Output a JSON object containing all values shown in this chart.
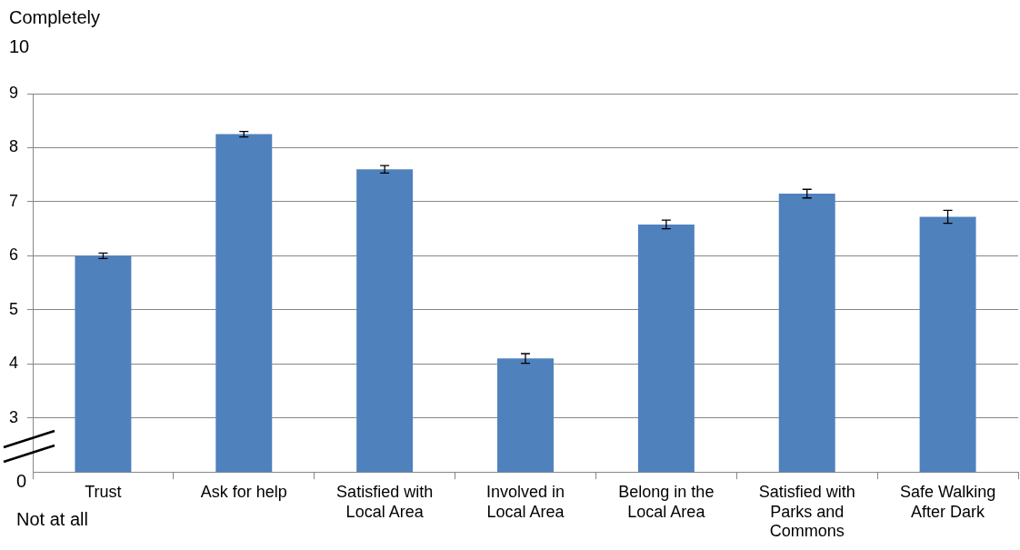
{
  "chart_data": {
    "type": "bar",
    "categories": [
      "Trust",
      "Ask for help",
      "Satisfied with Local Area",
      "Involved in Local Area",
      "Belong in the Local Area",
      "Satisfied with Parks and Commons",
      "Safe Walking After Dark"
    ],
    "values": [
      6.0,
      8.25,
      7.6,
      4.1,
      6.58,
      7.15,
      6.72
    ],
    "errors": [
      0.05,
      0.05,
      0.07,
      0.09,
      0.08,
      0.08,
      0.12
    ],
    "color": "#4f81bd",
    "ylim": [
      2,
      9
    ],
    "yticks": [
      3,
      4,
      5,
      6,
      7,
      8,
      9
    ],
    "grid": "y",
    "legend": false,
    "annotations": [
      "Completely",
      "10",
      "0",
      "Not at all"
    ]
  }
}
